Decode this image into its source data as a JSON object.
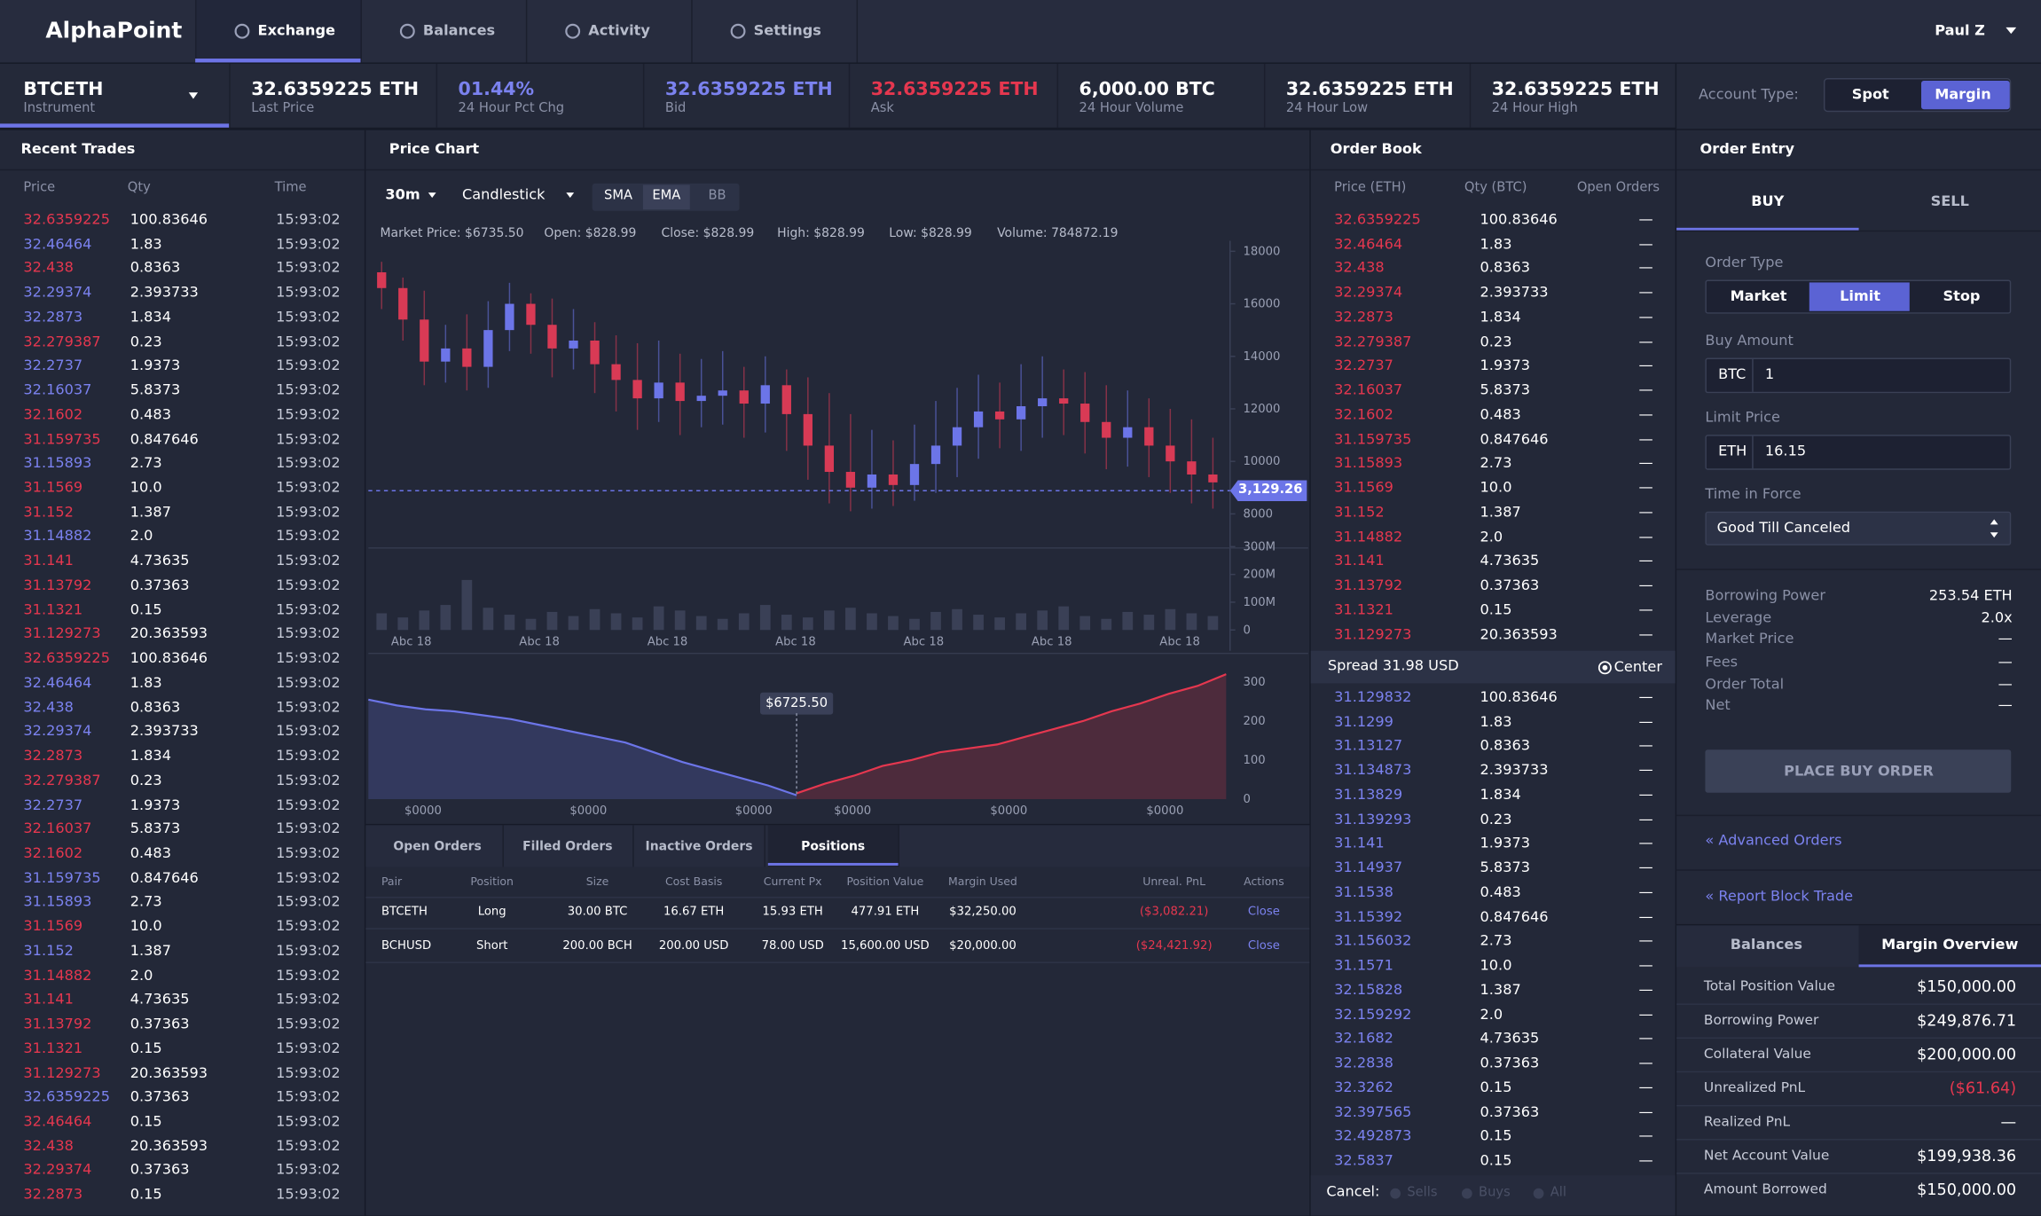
{
  "palette": {
    "red": "#e5374f",
    "blue": "#7b82ef",
    "white": "#ffffff"
  },
  "nav": {
    "logo": "AlphaPoint",
    "tabs": [
      "Exchange",
      "Balances",
      "Activity",
      "Settings"
    ],
    "active_tab": 0,
    "user": "Paul Z"
  },
  "ticker": {
    "instrument": "BTCETH",
    "instrument_label": "Instrument",
    "stats": [
      {
        "value": "32.6359225 ETH",
        "label": "Last Price",
        "color": "white"
      },
      {
        "value": "01.44%",
        "label": "24 Hour Pct Chg",
        "color": "blue"
      },
      {
        "value": "32.6359225 ETH",
        "label": "Bid",
        "color": "blue"
      },
      {
        "value": "32.6359225 ETH",
        "label": "Ask",
        "color": "red"
      },
      {
        "value": "6,000.00 BTC",
        "label": "24 Hour Volume",
        "color": "white"
      },
      {
        "value": "32.6359225 ETH",
        "label": "24 Hour Low",
        "color": "white"
      },
      {
        "value": "32.6359225 ETH",
        "label": "24 Hour High",
        "color": "white"
      }
    ]
  },
  "account_type": {
    "label": "Account Type:",
    "options": [
      "Spot",
      "Margin"
    ],
    "active": 1
  },
  "recent_trades": {
    "title": "Recent Trades",
    "columns": [
      "Price",
      "Qty",
      "Time"
    ],
    "rows": [
      [
        "32.6359225",
        "100.83646",
        "15:93:02"
      ],
      [
        "32.46464",
        "1.83",
        "15:93:02"
      ],
      [
        "32.438",
        "0.8363",
        "15:93:02"
      ],
      [
        "32.29374",
        "2.393733",
        "15:93:02"
      ],
      [
        "32.2873",
        "1.834",
        "15:93:02"
      ],
      [
        "32.279387",
        "0.23",
        "15:93:02"
      ],
      [
        "32.2737",
        "1.9373",
        "15:93:02"
      ],
      [
        "32.16037",
        "5.8373",
        "15:93:02"
      ],
      [
        "32.1602",
        "0.483",
        "15:93:02"
      ],
      [
        "31.159735",
        "0.847646",
        "15:93:02"
      ],
      [
        "31.15893",
        "2.73",
        "15:93:02"
      ],
      [
        "31.1569",
        "10.0",
        "15:93:02"
      ],
      [
        "31.152",
        "1.387",
        "15:93:02"
      ],
      [
        "31.14882",
        "2.0",
        "15:93:02"
      ],
      [
        "31.141",
        "4.73635",
        "15:93:02"
      ],
      [
        "31.13792",
        "0.37363",
        "15:93:02"
      ],
      [
        "31.1321",
        "0.15",
        "15:93:02"
      ],
      [
        "31.129273",
        "20.363593",
        "15:93:02"
      ],
      [
        "32.6359225",
        "100.83646",
        "15:93:02"
      ],
      [
        "32.46464",
        "1.83",
        "15:93:02"
      ],
      [
        "32.438",
        "0.8363",
        "15:93:02"
      ],
      [
        "32.29374",
        "2.393733",
        "15:93:02"
      ],
      [
        "32.2873",
        "1.834",
        "15:93:02"
      ],
      [
        "32.279387",
        "0.23",
        "15:93:02"
      ],
      [
        "32.2737",
        "1.9373",
        "15:93:02"
      ],
      [
        "32.16037",
        "5.8373",
        "15:93:02"
      ],
      [
        "32.1602",
        "0.483",
        "15:93:02"
      ],
      [
        "31.159735",
        "0.847646",
        "15:93:02"
      ],
      [
        "31.15893",
        "2.73",
        "15:93:02"
      ],
      [
        "31.1569",
        "10.0",
        "15:93:02"
      ],
      [
        "31.152",
        "1.387",
        "15:93:02"
      ],
      [
        "31.14882",
        "2.0",
        "15:93:02"
      ],
      [
        "31.141",
        "4.73635",
        "15:93:02"
      ],
      [
        "31.13792",
        "0.37363",
        "15:93:02"
      ],
      [
        "31.1321",
        "0.15",
        "15:93:02"
      ],
      [
        "31.129273",
        "20.363593",
        "15:93:02"
      ],
      [
        "32.6359225",
        "0.37363",
        "15:93:02"
      ],
      [
        "32.46464",
        "0.15",
        "15:93:02"
      ],
      [
        "32.438",
        "20.363593",
        "15:93:02"
      ],
      [
        "32.29374",
        "0.37363",
        "15:93:02"
      ],
      [
        "32.2873",
        "0.15",
        "15:93:02"
      ]
    ],
    "colors": [
      "red",
      "blue",
      "red",
      "blue",
      "blue",
      "red",
      "blue",
      "blue",
      "red",
      "red",
      "blue",
      "red",
      "red",
      "blue",
      "red",
      "red",
      "red",
      "red",
      "red",
      "blue",
      "blue",
      "blue",
      "red",
      "red",
      "blue",
      "red",
      "red",
      "blue",
      "blue",
      "red",
      "blue",
      "red",
      "red",
      "red",
      "red",
      "red",
      "blue",
      "red",
      "red",
      "red",
      "red"
    ]
  },
  "price_chart": {
    "title": "Price Chart",
    "interval": "30m",
    "chart_type": "Candlestick",
    "indicators": [
      "SMA",
      "EMA",
      "BB"
    ],
    "active_indicator": 1,
    "info": [
      "Market Price: $6735.50",
      "Open: $828.99",
      "Close: $828.99",
      "High: $828.99",
      "Low: $828.99",
      "Volume: 784872.19"
    ],
    "ylim": [
      7000,
      18400
    ],
    "yticks": [
      8000,
      10000,
      12000,
      14000,
      16000,
      18000
    ],
    "last_price_label": "3,129.26",
    "candles": {
      "open": [
        17200,
        16600,
        15400,
        13800,
        14300,
        13600,
        15000,
        16000,
        15200,
        14300,
        14600,
        13700,
        13100,
        12400,
        13000,
        12300,
        12500,
        12700,
        12200,
        12900,
        11800,
        10600,
        9600,
        9000,
        9500,
        9100,
        9900,
        10600,
        11300,
        11900,
        11600,
        12100,
        12400,
        12200,
        11500,
        10900,
        11300,
        10600,
        10000,
        9500
      ],
      "high": [
        17600,
        17000,
        16500,
        15200,
        15600,
        16100,
        16800,
        16400,
        16200,
        15800,
        15300,
        14800,
        14500,
        14600,
        14100,
        13900,
        14200,
        13600,
        14000,
        13500,
        13200,
        12600,
        11800,
        11200,
        10800,
        11400,
        12300,
        12800,
        13300,
        13000,
        13700,
        14000,
        13500,
        13400,
        12900,
        12700,
        12400,
        12000,
        11600,
        10900
      ],
      "low": [
        15800,
        14600,
        12900,
        13000,
        12700,
        12800,
        14200,
        14100,
        13200,
        13500,
        12600,
        11900,
        11200,
        11500,
        11000,
        11300,
        11400,
        10900,
        11100,
        10400,
        9300,
        8400,
        8100,
        8200,
        8300,
        8500,
        8800,
        9400,
        10100,
        10500,
        10400,
        10900,
        11000,
        10300,
        9700,
        9800,
        9400,
        8800,
        8400,
        8200
      ],
      "close": [
        16600,
        15400,
        13800,
        14300,
        13600,
        15000,
        16000,
        15200,
        14300,
        14600,
        13700,
        13100,
        12400,
        13000,
        12300,
        12500,
        12700,
        12200,
        12900,
        11800,
        10600,
        9600,
        9000,
        9500,
        9100,
        9900,
        10600,
        11300,
        11900,
        11600,
        12100,
        12400,
        12200,
        11500,
        10900,
        11300,
        10600,
        10000,
        9500,
        9200
      ],
      "up_color": "#6c75e8",
      "down_color": "#d83a55"
    },
    "volume": {
      "values": [
        60,
        45,
        70,
        90,
        180,
        80,
        55,
        40,
        65,
        50,
        75,
        60,
        45,
        85,
        70,
        50,
        40,
        60,
        90,
        55,
        45,
        70,
        80,
        60,
        50,
        40,
        65,
        75,
        55,
        45,
        60,
        70,
        85,
        50,
        40,
        65,
        55,
        75,
        60,
        50
      ],
      "ylim": [
        0,
        300
      ],
      "yticks": [
        0,
        {
          "value": 100,
          "label": "100M"
        },
        {
          "value": 200,
          "label": "200M"
        },
        {
          "value": 300,
          "label": "300M"
        }
      ],
      "color": "#3a4056"
    },
    "xlabels": [
      "Abc 18",
      "Abc 18",
      "Abc 18",
      "Abc 18",
      "Abc 18",
      "Abc 18",
      "Abc 18"
    ]
  },
  "depth_chart": {
    "bids": [
      255,
      240,
      230,
      225,
      215,
      205,
      190,
      175,
      160,
      145,
      120,
      95,
      75,
      55,
      35,
      10
    ],
    "asks": [
      15,
      40,
      60,
      85,
      100,
      120,
      130,
      140,
      160,
      180,
      200,
      225,
      245,
      270,
      290,
      320
    ],
    "ylim": [
      0,
      360
    ],
    "yticks": [
      0,
      100,
      200,
      300
    ],
    "mid_label": "$6725.50",
    "xlabels": [
      "$0000",
      "$0000",
      "$0000",
      "$0000",
      "$0000",
      "$0000"
    ],
    "bid_color": "#6c75e8",
    "ask_color": "#e5374f"
  },
  "positions": {
    "tabs": [
      "Open Orders",
      "Filled Orders",
      "Inactive Orders",
      "Positions"
    ],
    "active": 3,
    "columns": [
      "Pair",
      "Position",
      "Size",
      "Cost Basis",
      "Current Px",
      "Position Value",
      "Margin Used",
      "Unreal. PnL",
      "Actions"
    ],
    "rows": [
      [
        "BTCETH",
        "Long",
        "30.00 BTC",
        "16.67 ETH",
        "15.93 ETH",
        "477.91 ETH",
        "$32,250.00",
        "($3,082.21)",
        "Close"
      ],
      [
        "BCHUSD",
        "Short",
        "200.00 BCH",
        "200.00 USD",
        "78.00 USD",
        "15,600.00 USD",
        "$20,000.00",
        "($24,421.92)",
        "Close"
      ]
    ],
    "pnl_color": "red",
    "action_color": "blue"
  },
  "order_book": {
    "title": "Order Book",
    "columns": [
      "Price (ETH)",
      "Qty (BTC)",
      "Open Orders"
    ],
    "asks": [
      [
        "32.6359225",
        "100.83646",
        "—"
      ],
      [
        "32.46464",
        "1.83",
        "—"
      ],
      [
        "32.438",
        "0.8363",
        "—"
      ],
      [
        "32.29374",
        "2.393733",
        "—"
      ],
      [
        "32.2873",
        "1.834",
        "—"
      ],
      [
        "32.279387",
        "0.23",
        "—"
      ],
      [
        "32.2737",
        "1.9373",
        "—"
      ],
      [
        "32.16037",
        "5.8373",
        "—"
      ],
      [
        "32.1602",
        "0.483",
        "—"
      ],
      [
        "31.159735",
        "0.847646",
        "—"
      ],
      [
        "31.15893",
        "2.73",
        "—"
      ],
      [
        "31.1569",
        "10.0",
        "—"
      ],
      [
        "31.152",
        "1.387",
        "—"
      ],
      [
        "31.14882",
        "2.0",
        "—"
      ],
      [
        "31.141",
        "4.73635",
        "—"
      ],
      [
        "31.13792",
        "0.37363",
        "—"
      ],
      [
        "31.1321",
        "0.15",
        "—"
      ],
      [
        "31.129273",
        "20.363593",
        "—"
      ]
    ],
    "bids": [
      [
        "31.129832",
        "100.83646",
        "—"
      ],
      [
        "31.1299",
        "1.83",
        "—"
      ],
      [
        "31.13127",
        "0.8363",
        "—"
      ],
      [
        "31.134873",
        "2.393733",
        "—"
      ],
      [
        "31.13829",
        "1.834",
        "—"
      ],
      [
        "31.139293",
        "0.23",
        "—"
      ],
      [
        "31.141",
        "1.9373",
        "—"
      ],
      [
        "31.14937",
        "5.8373",
        "—"
      ],
      [
        "31.1538",
        "0.483",
        "—"
      ],
      [
        "31.15392",
        "0.847646",
        "—"
      ],
      [
        "31.156032",
        "2.73",
        "—"
      ],
      [
        "31.1571",
        "10.0",
        "—"
      ],
      [
        "32.15828",
        "1.387",
        "—"
      ],
      [
        "32.159292",
        "2.0",
        "—"
      ],
      [
        "32.1682",
        "4.73635",
        "—"
      ],
      [
        "32.2838",
        "0.37363",
        "—"
      ],
      [
        "32.3262",
        "0.15",
        "—"
      ],
      [
        "32.397565",
        "0.37363",
        "—"
      ],
      [
        "32.492873",
        "0.15",
        "—"
      ],
      [
        "32.5837",
        "0.15",
        "—"
      ]
    ],
    "ask_color": "red",
    "bid_color": "blue",
    "spread": "Spread 31.98 USD",
    "center": "Center",
    "cancel": "Cancel:",
    "cancel_options": [
      "Sells",
      "Buys",
      "All"
    ]
  },
  "order_entry": {
    "title": "Order Entry",
    "sides": [
      "BUY",
      "SELL"
    ],
    "active_side": 0,
    "order_type_label": "Order Type",
    "order_types": [
      "Market",
      "Limit",
      "Stop"
    ],
    "active_type": 1,
    "buy_amount_label": "Buy Amount",
    "buy_amount_unit": "BTC",
    "buy_amount": "1",
    "limit_price_label": "Limit Price",
    "limit_price_unit": "ETH",
    "limit_price": "16.15",
    "tif_label": "Time in Force",
    "tif": "Good Till Canceled",
    "summary": [
      [
        "Borrowing Power",
        "253.54 ETH"
      ],
      [
        "Leverage",
        "2.0x"
      ],
      [
        "Market Price",
        "—"
      ],
      [
        "Fees",
        "—"
      ],
      [
        "Order Total",
        "—"
      ],
      [
        "Net",
        "—"
      ]
    ],
    "button": "PLACE BUY ORDER",
    "links": [
      "« Advanced Orders",
      "« Report Block Trade"
    ]
  },
  "margin": {
    "tabs": [
      "Balances",
      "Margin Overview"
    ],
    "active": 1,
    "rows": [
      [
        "Total Position Value",
        "$150,000.00"
      ],
      [
        "Borrowing Power",
        "$249,876.71"
      ],
      [
        "Collateral Value",
        "$200,000.00"
      ],
      [
        "Unrealized PnL",
        "($61.64)"
      ],
      [
        "Realized PnL",
        "—"
      ],
      [
        "Net Account Value",
        "$199,938.36"
      ],
      [
        "Amount Borrowed",
        "$150,000.00"
      ]
    ],
    "colors": [
      "white",
      "white",
      "white",
      "red",
      "white",
      "white",
      "white"
    ]
  }
}
